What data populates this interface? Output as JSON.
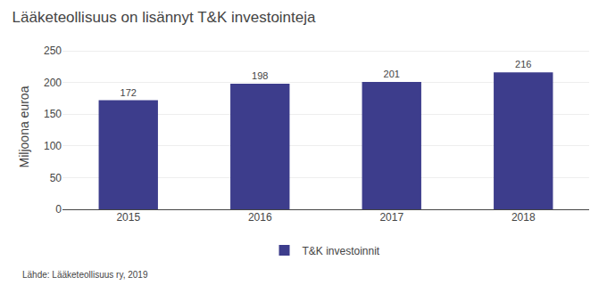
{
  "chart_data": {
    "type": "bar",
    "title": "Lääketeollisuus on lisännyt T&K investointeja",
    "ylabel": "Miljoona euroa",
    "categories": [
      "2015",
      "2016",
      "2017",
      "2018"
    ],
    "series": [
      {
        "name": "T&K investoinnit",
        "color": "#3d3d8c",
        "values": [
          172,
          198,
          201,
          216
        ]
      }
    ],
    "ylim": [
      0,
      260
    ],
    "yticks": [
      0,
      50,
      100,
      150,
      200,
      250
    ],
    "grid": true,
    "data_labels": true,
    "legend": "bottom",
    "annotations": [
      "Lähde: Lääketeollisuus ry, 2019"
    ]
  }
}
